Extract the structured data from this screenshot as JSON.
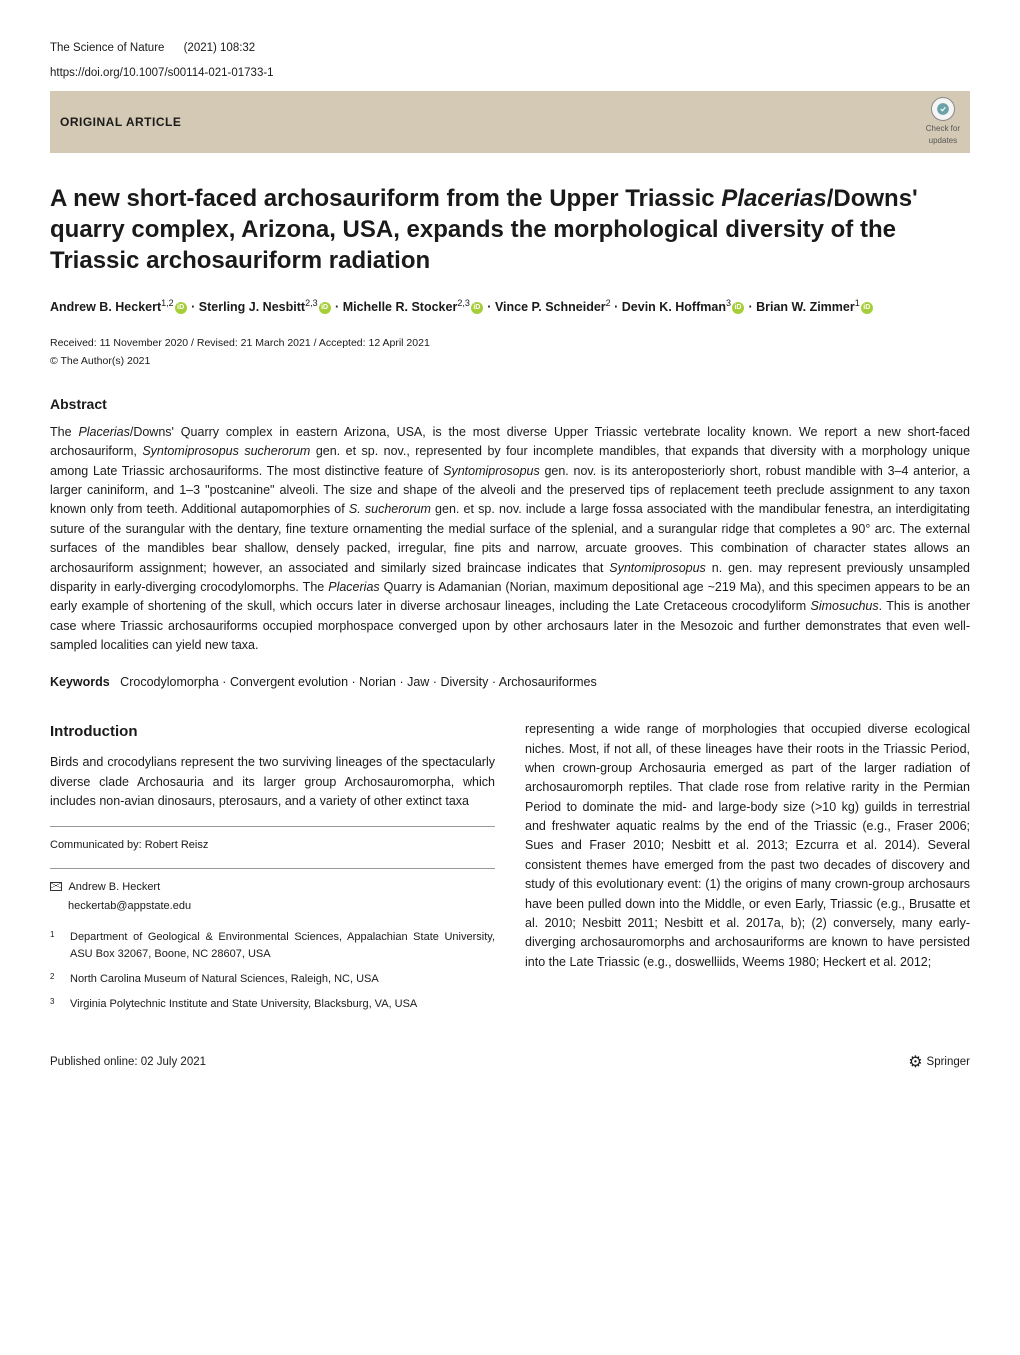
{
  "header": {
    "journal": "The Science of Nature",
    "year_issue": "(2021) 108:32",
    "doi": "https://doi.org/10.1007/s00114-021-01733-1"
  },
  "article_type": "ORIGINAL ARTICLE",
  "check_badge": {
    "line1": "Check for",
    "line2": "updates"
  },
  "title": {
    "part1": "A new short-faced archosauriform from the Upper Triassic ",
    "italic": "Placerias",
    "part2": "/Downs' quarry complex, Arizona, USA, expands the morphological diversity of the Triassic archosauriform radiation"
  },
  "authors": [
    {
      "name": "Andrew B. Heckert",
      "sup": "1,2",
      "orcid": true
    },
    {
      "name": "Sterling J. Nesbitt",
      "sup": "2,3",
      "orcid": true
    },
    {
      "name": "Michelle R. Stocker",
      "sup": "2,3",
      "orcid": true
    },
    {
      "name": "Vince P. Schneider",
      "sup": "2",
      "orcid": false
    },
    {
      "name": "Devin K. Hoffman",
      "sup": "3",
      "orcid": true
    },
    {
      "name": "Brian W. Zimmer",
      "sup": "1",
      "orcid": true
    }
  ],
  "dates": "Received: 11 November 2020 / Revised: 21 March 2021 / Accepted: 12 April 2021",
  "copyright": "© The Author(s) 2021",
  "abstract": {
    "heading": "Abstract",
    "text_parts": [
      {
        "t": "The ",
        "i": false
      },
      {
        "t": "Placerias",
        "i": true
      },
      {
        "t": "/Downs' Quarry complex in eastern Arizona, USA, is the most diverse Upper Triassic vertebrate locality known. We report a new short-faced archosauriform, ",
        "i": false
      },
      {
        "t": "Syntomiprosopus sucherorum",
        "i": true
      },
      {
        "t": " gen. et sp. nov., represented by four incomplete mandibles, that expands that diversity with a morphology unique among Late Triassic archosauriforms. The most distinctive feature of ",
        "i": false
      },
      {
        "t": "Syntomiprosopus",
        "i": true
      },
      {
        "t": " gen. nov. is its anteroposteriorly short, robust mandible with 3–4 anterior, a larger caniniform, and 1–3 \"postcanine\" alveoli. The size and shape of the alveoli and the preserved tips of replacement teeth preclude assignment to any taxon known only from teeth. Additional autapomorphies of ",
        "i": false
      },
      {
        "t": "S. sucherorum",
        "i": true
      },
      {
        "t": " gen. et sp. nov. include a large fossa associated with the mandibular fenestra, an interdigitating suture of the surangular with the dentary, fine texture ornamenting the medial surface of the splenial, and a surangular ridge that completes a 90° arc. The external surfaces of the mandibles bear shallow, densely packed, irregular, fine pits and narrow, arcuate grooves. This combination of character states allows an archosauriform assignment; however, an associated and similarly sized braincase indicates that ",
        "i": false
      },
      {
        "t": "Syntomiprosopus",
        "i": true
      },
      {
        "t": " n. gen. may represent previously unsampled disparity in early-diverging crocodylomorphs. The ",
        "i": false
      },
      {
        "t": "Placerias",
        "i": true
      },
      {
        "t": " Quarry is Adamanian (Norian, maximum depositional age ~219 Ma), and this specimen appears to be an early example of shortening of the skull, which occurs later in diverse archosaur lineages, including the Late Cretaceous crocodyliform ",
        "i": false
      },
      {
        "t": "Simosuchus",
        "i": true
      },
      {
        "t": ". This is another case where Triassic archosauriforms occupied morphospace converged upon by other archosaurs later in the Mesozoic and further demonstrates that even well-sampled localities can yield new taxa.",
        "i": false
      }
    ]
  },
  "keywords": {
    "label": "Keywords",
    "text": "Crocodylomorpha · Convergent evolution · Norian · Jaw · Diversity · Archosauriformes"
  },
  "introduction": {
    "heading": "Introduction",
    "left_text": "Birds and crocodylians represent the two surviving lineages of the spectacularly diverse clade Archosauria and its larger group Archosauromorpha, which includes non-avian dinosaurs, pterosaurs, and a variety of other extinct taxa",
    "right_text": "representing a wide range of morphologies that occupied diverse ecological niches. Most, if not all, of these lineages have their roots in the Triassic Period, when crown-group Archosauria emerged as part of the larger radiation of archosauromorph reptiles. That clade rose from relative rarity in the Permian Period to dominate the mid- and large-body size (>10 kg) guilds in terrestrial and freshwater aquatic realms by the end of the Triassic (e.g., Fraser 2006; Sues and Fraser 2010; Nesbitt et al. 2013; Ezcurra et al. 2014). Several consistent themes have emerged from the past two decades of discovery and study of this evolutionary event: (1) the origins of many crown-group archosaurs have been pulled down into the Middle, or even Early, Triassic (e.g., Brusatte et al. 2010; Nesbitt 2011; Nesbitt et al. 2017a, b); (2) conversely, many early-diverging archosauromorphs and archosauriforms are known to have persisted into the Late Triassic (e.g., doswelliids, Weems 1980; Heckert et al. 2012;"
  },
  "communicated": "Communicated by: Robert Reisz",
  "correspondence": {
    "name": "Andrew B. Heckert",
    "email": "heckertab@appstate.edu"
  },
  "affiliations": [
    {
      "num": "1",
      "text": "Department of Geological & Environmental Sciences, Appalachian State University, ASU Box 32067, Boone, NC 28607, USA"
    },
    {
      "num": "2",
      "text": "North Carolina Museum of Natural Sciences, Raleigh, NC, USA"
    },
    {
      "num": "3",
      "text": "Virginia Polytechnic Institute and State University, Blacksburg, VA, USA"
    }
  ],
  "footer": {
    "published": "Published online: 02 July 2021",
    "publisher": "Springer"
  },
  "colors": {
    "bar_bg": "#d4c9b5",
    "orcid": "#a6ce39",
    "text": "#1a1a1a"
  }
}
